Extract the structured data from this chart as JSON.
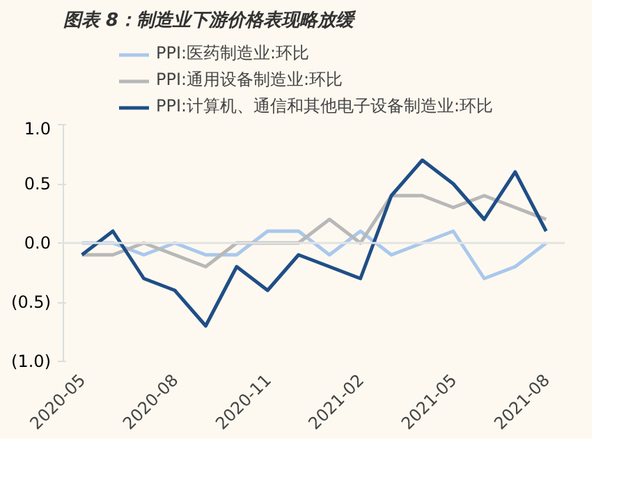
{
  "chart_data": {
    "type": "line",
    "title": "图表 8：制造业下游价格表现略放缓",
    "categories": [
      "2020-05",
      null,
      null,
      "2020-08",
      null,
      null,
      "2020-11",
      null,
      null,
      "2021-02",
      null,
      null,
      "2021-05",
      null,
      null,
      "2021-08"
    ],
    "series": [
      {
        "name": "PPI:医药制造业:环比",
        "color": "#a9c8ec",
        "values": [
          0,
          0,
          -0.1,
          0,
          -0.1,
          -0.1,
          0.1,
          0.1,
          -0.1,
          0.1,
          -0.1,
          0,
          0.1,
          -0.3,
          -0.2,
          0
        ]
      },
      {
        "name": "PPI:通用设备制造业:环比",
        "color": "#b8b8b8",
        "values": [
          -0.1,
          -0.1,
          0,
          -0.1,
          -0.2,
          0,
          0,
          0,
          0.2,
          0,
          0.4,
          0.4,
          0.3,
          0.4,
          0.3,
          0.2
        ]
      },
      {
        "name": "PPI:计算机、通信和其他电子设备制造业:环比",
        "color": "#1f4e87",
        "values": [
          -0.1,
          0.1,
          -0.3,
          -0.4,
          -0.7,
          -0.2,
          -0.4,
          -0.1,
          -0.2,
          -0.3,
          0.4,
          0.7,
          0.5,
          0.2,
          0.6,
          0.1
        ]
      }
    ],
    "ylim": [
      -1,
      1
    ],
    "yticks": [
      {
        "value": -1,
        "label": "(1.0)"
      },
      {
        "value": -0.5,
        "label": "(0.5)"
      },
      {
        "value": 0,
        "label": "0.0"
      },
      {
        "value": 0.5,
        "label": "0.5"
      },
      {
        "value": 1,
        "label": "1.0"
      }
    ],
    "ref_lines": [
      {
        "axis": "y",
        "value": 0,
        "color": "#e3e3e3"
      }
    ],
    "legend": "top",
    "grid": false,
    "marker": "none",
    "line_style": "solid"
  }
}
